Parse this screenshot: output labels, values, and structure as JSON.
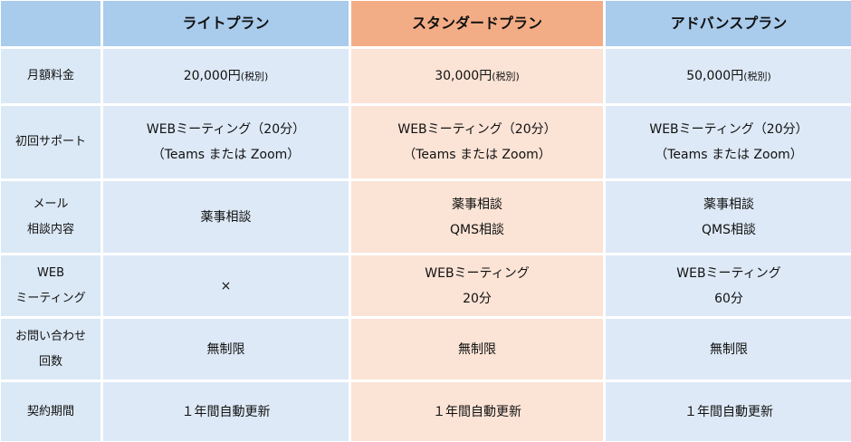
{
  "table": {
    "header": [
      "ライトプラン",
      "スタンダードプラン",
      "アドバンスプラン"
    ],
    "rows": [
      {
        "label": [
          "月額料金"
        ],
        "cells": [
          {
            "price": "20,000円",
            "note": "(税別)"
          },
          {
            "price": "30,000円",
            "note": "(税別)"
          },
          {
            "price": "50,000円",
            "note": "(税別)"
          }
        ]
      },
      {
        "label": [
          "初回サポート"
        ],
        "cells": [
          [
            "WEBミーティング（20分）",
            "（Teams または Zoom）"
          ],
          [
            "WEBミーティング（20分）",
            "（Teams または Zoom）"
          ],
          [
            "WEBミーティング（20分）",
            "（Teams または Zoom）"
          ]
        ]
      },
      {
        "label": [
          "メール",
          "相談内容"
        ],
        "cells": [
          [
            "薬事相談"
          ],
          [
            "薬事相談",
            "QMS相談"
          ],
          [
            "薬事相談",
            "QMS相談"
          ]
        ]
      },
      {
        "label": [
          "WEB",
          "ミーティング"
        ],
        "cells": [
          [
            "×"
          ],
          [
            "WEBミーティング",
            "20分"
          ],
          [
            "WEBミーティング",
            "60分"
          ]
        ]
      },
      {
        "label": [
          "お問い合わせ",
          "回数"
        ],
        "cells": [
          [
            "無制限"
          ],
          [
            "無制限"
          ],
          [
            "無制限"
          ]
        ]
      },
      {
        "label": [
          "契約期間"
        ],
        "cells": [
          [
            "１年間自動更新"
          ],
          [
            "１年間自動更新"
          ],
          [
            "１年間自動更新"
          ]
        ]
      }
    ]
  }
}
